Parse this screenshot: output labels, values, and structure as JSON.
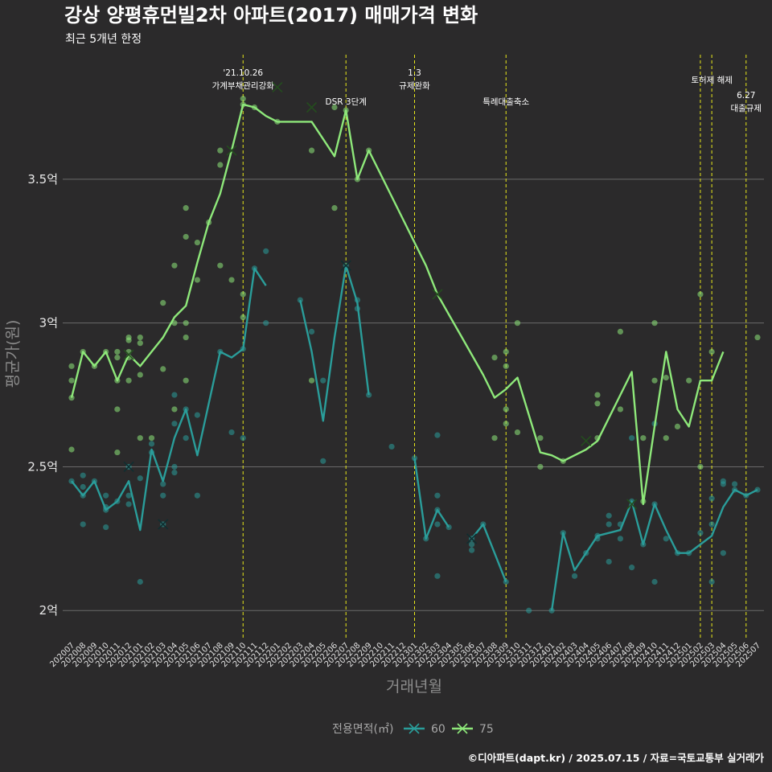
{
  "chart_data": {
    "type": "line",
    "title": "강상 양평휴먼빌2차 아파트(2017) 매매가격 변화",
    "subtitle": "최근 5개년 한정",
    "xlabel": "거래년월",
    "ylabel": "평균가(원)",
    "ylim": [
      1.9,
      3.95
    ],
    "yticks": [
      2,
      2.5,
      3,
      3.5
    ],
    "ytick_labels": [
      "2억",
      "2.5억",
      "3억",
      "3.5억"
    ],
    "categories": [
      "202007",
      "202008",
      "202009",
      "202010",
      "202011",
      "202012",
      "202101",
      "202102",
      "202103",
      "202104",
      "202105",
      "202106",
      "202107",
      "202108",
      "202109",
      "202110",
      "202111",
      "202112",
      "202201",
      "202202",
      "202203",
      "202204",
      "202205",
      "202206",
      "202207",
      "202208",
      "202209",
      "202210",
      "202211",
      "202212",
      "202301",
      "202302",
      "202303",
      "202304",
      "202305",
      "202306",
      "202307",
      "202308",
      "202309",
      "202310",
      "202311",
      "202312",
      "202401",
      "202402",
      "202403",
      "202404",
      "202405",
      "202406",
      "202407",
      "202408",
      "202409",
      "202410",
      "202411",
      "202412",
      "202501",
      "202502",
      "202503",
      "202504",
      "202505",
      "202506",
      "202507"
    ],
    "grid": true,
    "legend": {
      "title": "전용면적(㎡)",
      "placement": "bottom",
      "entries": [
        {
          "name": "60",
          "color": "#2a9d9a"
        },
        {
          "name": "75",
          "color": "#8ee87a"
        }
      ]
    },
    "series": [
      {
        "name": "60",
        "color": "#2a9d9a",
        "values": [
          2.45,
          2.4,
          2.45,
          2.35,
          2.38,
          2.45,
          2.28,
          2.56,
          2.45,
          2.6,
          2.7,
          2.54,
          2.72,
          2.9,
          2.88,
          2.91,
          3.19,
          3.13,
          null,
          null,
          3.08,
          2.9,
          2.66,
          2.95,
          3.2,
          3.07,
          2.75,
          null,
          null,
          null,
          2.53,
          2.25,
          2.35,
          2.29,
          null,
          2.25,
          2.3,
          2.2,
          2.1,
          null,
          null,
          null,
          2.0,
          2.27,
          2.14,
          2.2,
          2.26,
          2.27,
          2.28,
          2.38,
          2.23,
          2.37,
          2.28,
          2.2,
          2.2,
          2.23,
          2.26,
          2.36,
          2.42,
          2.4,
          2.42
        ]
      },
      {
        "name": "75",
        "color": "#8ee87a",
        "values": [
          2.74,
          2.9,
          2.85,
          2.9,
          2.8,
          2.89,
          2.85,
          2.9,
          2.95,
          3.02,
          3.06,
          3.21,
          3.35,
          3.45,
          3.6,
          3.76,
          3.75,
          3.72,
          3.7,
          3.7,
          3.7,
          3.7,
          3.64,
          3.58,
          3.74,
          3.5,
          3.6,
          3.52,
          3.44,
          3.36,
          3.28,
          3.2,
          3.1,
          3.03,
          2.96,
          2.89,
          2.82,
          2.74,
          2.77,
          2.81,
          2.68,
          2.55,
          2.54,
          2.52,
          2.54,
          2.56,
          2.59,
          2.67,
          2.75,
          2.83,
          2.37,
          2.64,
          2.9,
          2.7,
          2.64,
          2.8,
          2.8,
          2.9,
          null,
          null,
          2.95
        ]
      }
    ],
    "points": {
      "60": [
        [
          0,
          2.45
        ],
        [
          1,
          2.3
        ],
        [
          1,
          2.43
        ],
        [
          1,
          2.4
        ],
        [
          1,
          2.47
        ],
        [
          2,
          2.45
        ],
        [
          3,
          2.4
        ],
        [
          3,
          2.36
        ],
        [
          3,
          2.35
        ],
        [
          3,
          2.29
        ],
        [
          4,
          2.38
        ],
        [
          5,
          2.4
        ],
        [
          5,
          2.37
        ],
        [
          5,
          2.5
        ],
        [
          6,
          2.46
        ],
        [
          6,
          2.1
        ],
        [
          7,
          2.58
        ],
        [
          7,
          2.55
        ],
        [
          8,
          2.3
        ],
        [
          8,
          2.4
        ],
        [
          8,
          2.44
        ],
        [
          9,
          2.48
        ],
        [
          9,
          2.5
        ],
        [
          9,
          2.65
        ],
        [
          9,
          2.75
        ],
        [
          10,
          2.6
        ],
        [
          10,
          2.7
        ],
        [
          11,
          2.68
        ],
        [
          11,
          2.4
        ],
        [
          13,
          2.9
        ],
        [
          14,
          2.62
        ],
        [
          15,
          2.6
        ],
        [
          15,
          2.91
        ],
        [
          16,
          3.19
        ],
        [
          17,
          3.0
        ],
        [
          17,
          3.25
        ],
        [
          20,
          3.08
        ],
        [
          21,
          2.97
        ],
        [
          22,
          2.52
        ],
        [
          22,
          2.8
        ],
        [
          24,
          3.2
        ],
        [
          25,
          3.08
        ],
        [
          25,
          3.05
        ],
        [
          26,
          2.75
        ],
        [
          28,
          2.57
        ],
        [
          30,
          2.53
        ],
        [
          31,
          2.25
        ],
        [
          32,
          2.4
        ],
        [
          32,
          2.35
        ],
        [
          32,
          2.12
        ],
        [
          32,
          2.61
        ],
        [
          32,
          2.3
        ],
        [
          33,
          2.29
        ],
        [
          35,
          2.25
        ],
        [
          35,
          2.21
        ],
        [
          35,
          2.23
        ],
        [
          36,
          2.3
        ],
        [
          38,
          2.1
        ],
        [
          40,
          2.0
        ],
        [
          42,
          2.0
        ],
        [
          43,
          2.27
        ],
        [
          44,
          2.12
        ],
        [
          45,
          2.2
        ],
        [
          46,
          2.25
        ],
        [
          46,
          2.26
        ],
        [
          47,
          2.3
        ],
        [
          47,
          2.33
        ],
        [
          47,
          2.17
        ],
        [
          48,
          2.3
        ],
        [
          48,
          2.25
        ],
        [
          49,
          2.38
        ],
        [
          49,
          2.15
        ],
        [
          49,
          2.6
        ],
        [
          50,
          2.23
        ],
        [
          51,
          2.37
        ],
        [
          51,
          2.65
        ],
        [
          51,
          2.1
        ],
        [
          52,
          2.25
        ],
        [
          53,
          2.2
        ],
        [
          54,
          2.2
        ],
        [
          55,
          2.27
        ],
        [
          56,
          2.3
        ],
        [
          56,
          2.39
        ],
        [
          56,
          2.1
        ],
        [
          57,
          2.45
        ],
        [
          57,
          2.44
        ],
        [
          57,
          2.2
        ],
        [
          58,
          2.44
        ],
        [
          58,
          2.42
        ],
        [
          59,
          2.4
        ],
        [
          60,
          2.42
        ]
      ],
      "75": [
        [
          0,
          2.74
        ],
        [
          0,
          2.8
        ],
        [
          0,
          2.85
        ],
        [
          0,
          2.56
        ],
        [
          1,
          2.9
        ],
        [
          2,
          2.85
        ],
        [
          3,
          2.9
        ],
        [
          4,
          2.9
        ],
        [
          4,
          2.8
        ],
        [
          4,
          2.55
        ],
        [
          4,
          2.7
        ],
        [
          4,
          2.88
        ],
        [
          5,
          2.95
        ],
        [
          5,
          2.94
        ],
        [
          5,
          2.9
        ],
        [
          5,
          2.88
        ],
        [
          5,
          2.8
        ],
        [
          6,
          2.95
        ],
        [
          6,
          2.93
        ],
        [
          6,
          2.82
        ],
        [
          6,
          2.6
        ],
        [
          7,
          2.6
        ],
        [
          8,
          3.07
        ],
        [
          8,
          2.84
        ],
        [
          9,
          3.2
        ],
        [
          9,
          3.0
        ],
        [
          9,
          2.7
        ],
        [
          10,
          3.4
        ],
        [
          10,
          3.3
        ],
        [
          10,
          3.0
        ],
        [
          10,
          2.95
        ],
        [
          10,
          2.8
        ],
        [
          11,
          3.28
        ],
        [
          11,
          3.15
        ],
        [
          12,
          3.35
        ],
        [
          13,
          3.6
        ],
        [
          13,
          3.55
        ],
        [
          13,
          3.2
        ],
        [
          14,
          3.15
        ],
        [
          15,
          3.78
        ],
        [
          15,
          3.76
        ],
        [
          15,
          3.1
        ],
        [
          15,
          3.02
        ],
        [
          16,
          3.75
        ],
        [
          18,
          3.7
        ],
        [
          21,
          3.6
        ],
        [
          21,
          2.8
        ],
        [
          23,
          3.75
        ],
        [
          23,
          3.4
        ],
        [
          24,
          3.74
        ],
        [
          25,
          3.5
        ],
        [
          26,
          3.6
        ],
        [
          37,
          2.6
        ],
        [
          37,
          2.88
        ],
        [
          38,
          2.9
        ],
        [
          38,
          2.85
        ],
        [
          38,
          2.7
        ],
        [
          38,
          2.65
        ],
        [
          39,
          3.0
        ],
        [
          39,
          2.62
        ],
        [
          41,
          2.5
        ],
        [
          41,
          2.6
        ],
        [
          43,
          2.52
        ],
        [
          46,
          2.75
        ],
        [
          46,
          2.72
        ],
        [
          46,
          2.6
        ],
        [
          48,
          2.97
        ],
        [
          48,
          2.7
        ],
        [
          50,
          2.6
        ],
        [
          50,
          2.38
        ],
        [
          51,
          3.0
        ],
        [
          51,
          2.8
        ],
        [
          52,
          2.81
        ],
        [
          52,
          2.6
        ],
        [
          53,
          2.64
        ],
        [
          54,
          2.8
        ],
        [
          55,
          3.1
        ],
        [
          55,
          2.5
        ],
        [
          56,
          2.9
        ],
        [
          60,
          2.95
        ]
      ]
    },
    "crosses": {
      "60": [
        [
          5,
          2.5
        ],
        [
          8,
          2.3
        ],
        [
          24,
          3.2
        ],
        [
          35,
          2.25
        ]
      ],
      "75": [
        [
          5,
          2.89
        ],
        [
          14,
          3.6
        ],
        [
          18,
          3.82
        ],
        [
          21,
          3.75
        ],
        [
          32,
          3.1
        ],
        [
          45,
          2.59
        ],
        [
          49,
          2.37
        ]
      ]
    },
    "events": [
      {
        "x": 15,
        "lines": [
          "'21.10.26",
          "가계부채관리강화"
        ]
      },
      {
        "x": 24,
        "lines": [
          "DSR 3단계"
        ]
      },
      {
        "x": 30,
        "lines": [
          "1.3",
          "규제완화"
        ]
      },
      {
        "x": 38,
        "lines": [
          "특례대출축소"
        ]
      },
      {
        "x": 55,
        "lines": []
      },
      {
        "x": 56,
        "lines": [
          "토허제 해제"
        ]
      },
      {
        "x": 59,
        "lines": [
          "6.27",
          "대출규제"
        ]
      }
    ],
    "caption": "©디아파트(dapt.kr) / 2025.07.15 / 자료=국토교통부 실거래가"
  }
}
